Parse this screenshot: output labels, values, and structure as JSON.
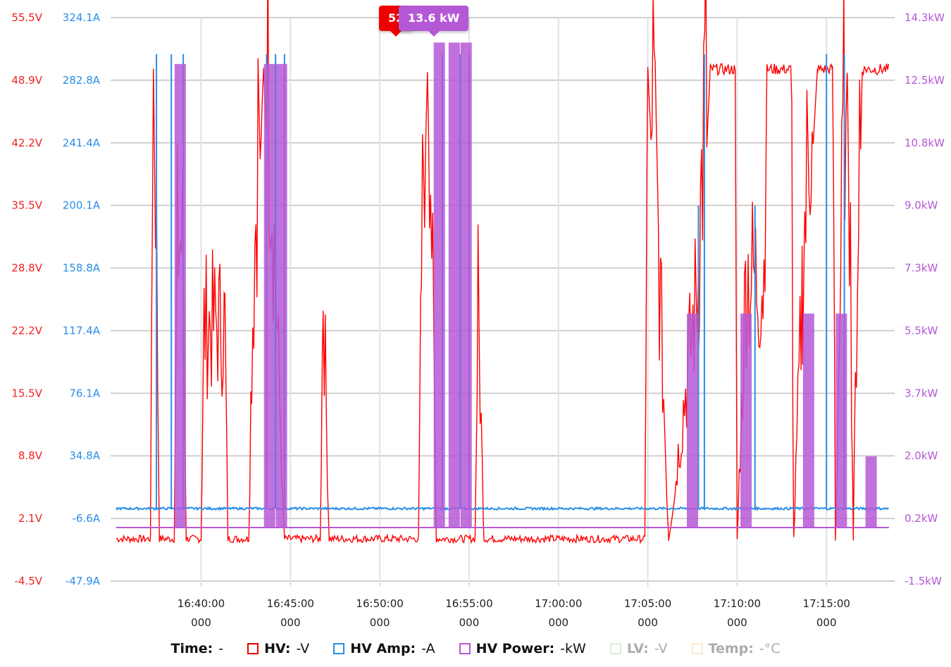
{
  "chart_data": {
    "type": "line",
    "x": [
      "16:35:15",
      "16:40:00",
      "16:45:00",
      "16:50:00",
      "16:55:00",
      "17:00:00",
      "17:05:00",
      "17:10:00",
      "17:15:00",
      "17:18:30"
    ],
    "x_tick_labels": [
      {
        "time": "16:40:00",
        "sub": "000"
      },
      {
        "time": "16:45:00",
        "sub": "000"
      },
      {
        "time": "16:50:00",
        "sub": "000"
      },
      {
        "time": "16:55:00",
        "sub": "000"
      },
      {
        "time": "17:00:00",
        "sub": "000"
      },
      {
        "time": "17:05:00",
        "sub": "000"
      },
      {
        "time": "17:10:00",
        "sub": "000"
      },
      {
        "time": "17:15:00",
        "sub": "000"
      }
    ],
    "y_axes": {
      "voltage": {
        "ticks": [
          "55.5V",
          "48.9V",
          "42.2V",
          "35.5V",
          "28.8V",
          "22.2V",
          "15.5V",
          "8.8V",
          "2.1V",
          "-4.5V"
        ],
        "ylim": [
          -4.5,
          55.5
        ],
        "color": "#ee2222"
      },
      "current": {
        "ticks": [
          "324.1A",
          "282.8A",
          "241.4A",
          "200.1A",
          "158.8A",
          "117.4A",
          "76.1A",
          "34.8A",
          "-6.6A",
          "-47.9A"
        ],
        "ylim": [
          -47.9,
          324.1
        ],
        "color": "#2a8ee8"
      },
      "power": {
        "ticks": [
          "14.3kW",
          "12.5kW",
          "10.8kW",
          "9.0kW",
          "7.3kW",
          "5.5kW",
          "3.7kW",
          "2.0kW",
          "0.2kW",
          "-1.5kW"
        ],
        "ylim": [
          -1.5,
          14.3
        ],
        "color": "#b558d6"
      }
    },
    "series": [
      {
        "name": "HV",
        "unit": "V",
        "color": "#ff0000",
        "segments": [
          [
            "16:35:15",
            0
          ],
          [
            "16:37:10",
            0
          ],
          [
            "16:37:20",
            50
          ],
          [
            "16:37:40",
            0
          ],
          [
            "16:38:30",
            0
          ],
          [
            "16:38:40",
            25
          ],
          [
            "16:39:00",
            25
          ],
          [
            "16:39:10",
            0
          ],
          [
            "16:40:00",
            0
          ],
          [
            "16:40:10",
            18
          ],
          [
            "16:41:20",
            18
          ],
          [
            "16:41:30",
            0
          ],
          [
            "16:42:40",
            0
          ],
          [
            "16:42:50",
            16
          ],
          [
            "16:43:30",
            50
          ],
          [
            "16:44:40",
            0
          ],
          [
            "16:46:40",
            0
          ],
          [
            "16:46:50",
            22
          ],
          [
            "16:47:10",
            0
          ],
          [
            "16:52:10",
            0
          ],
          [
            "16:52:20",
            22
          ],
          [
            "16:52:40",
            50
          ],
          [
            "16:53:10",
            0
          ],
          [
            "16:55:20",
            0
          ],
          [
            "16:55:30",
            20
          ],
          [
            "16:55:50",
            0
          ],
          [
            "17:04:50",
            0
          ],
          [
            "17:05:00",
            50
          ],
          [
            "17:06:10",
            0
          ],
          [
            "17:07:50",
            22
          ],
          [
            "17:08:30",
            50
          ],
          [
            "17:09:50",
            50
          ],
          [
            "17:10:00",
            0
          ],
          [
            "17:10:30",
            22
          ],
          [
            "17:11:30",
            22
          ],
          [
            "17:11:40",
            50
          ],
          [
            "17:13:00",
            50
          ],
          [
            "17:13:10",
            0
          ],
          [
            "17:13:40",
            22
          ],
          [
            "17:14:30",
            50
          ],
          [
            "17:15:20",
            50
          ],
          [
            "17:15:30",
            0
          ],
          [
            "17:16:10",
            50
          ],
          [
            "17:16:30",
            0
          ],
          [
            "17:17:00",
            50
          ],
          [
            "17:18:30",
            50
          ]
        ]
      },
      {
        "name": "HV Amp",
        "unit": "A",
        "color": "#2a8ee8",
        "baseline": 0,
        "spikes": [
          [
            "16:37:30",
            300
          ],
          [
            "16:38:20",
            300
          ],
          [
            "16:39:00",
            300
          ],
          [
            "16:43:40",
            300
          ],
          [
            "16:44:10",
            300
          ],
          [
            "16:44:40",
            300
          ],
          [
            "16:53:30",
            300
          ],
          [
            "16:54:30",
            300
          ],
          [
            "16:55:00",
            300
          ],
          [
            "17:07:50",
            200
          ],
          [
            "17:08:10",
            300
          ],
          [
            "17:11:00",
            200
          ],
          [
            "17:15:00",
            300
          ],
          [
            "17:16:00",
            300
          ]
        ]
      },
      {
        "name": "HV Power",
        "unit": "kW",
        "color": "#b558d6",
        "baseline": 0,
        "spikes": [
          [
            "16:38:50",
            13
          ],
          [
            "16:43:50",
            13
          ],
          [
            "16:44:30",
            13
          ],
          [
            "16:53:20",
            13.6
          ],
          [
            "16:54:10",
            13.6
          ],
          [
            "16:54:50",
            13.6
          ],
          [
            "17:07:30",
            6
          ],
          [
            "17:10:30",
            6
          ],
          [
            "17:14:00",
            6
          ],
          [
            "17:15:50",
            6
          ],
          [
            "17:17:30",
            2
          ]
        ]
      },
      {
        "name": "LV",
        "unit": "V",
        "color": "#8fcf8f",
        "hidden": true
      },
      {
        "name": "Temp",
        "unit": "°C",
        "color": "#f5c772",
        "hidden": true
      }
    ],
    "tooltips": [
      {
        "label": "52",
        "color": "#ee0000"
      },
      {
        "label": "13.6 kW",
        "color": "#b558d6"
      }
    ],
    "grid": true,
    "legend_position": "bottom"
  },
  "legend": {
    "time_label": "Time:",
    "time_value": "-",
    "items": [
      {
        "name": "HV:",
        "value": "-V",
        "color": "#ee0000",
        "off": false
      },
      {
        "name": "HV Amp:",
        "value": "-A",
        "color": "#2a8ee8",
        "off": false
      },
      {
        "name": "HV Power:",
        "value": "-kW",
        "color": "#b558d6",
        "off": false
      },
      {
        "name": "LV:",
        "value": "-V",
        "color": "#8fcf8f",
        "off": true
      },
      {
        "name": "Temp:",
        "value": "-°C",
        "color": "#f5c772",
        "off": true
      }
    ]
  }
}
